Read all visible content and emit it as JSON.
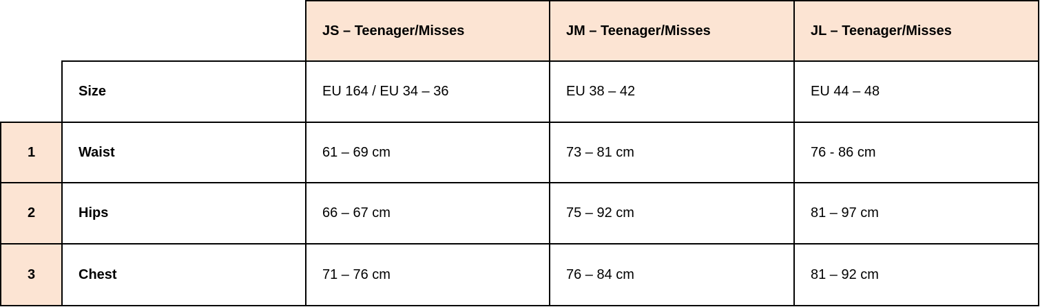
{
  "table": {
    "columns": [
      "JS – Teenager/Misses",
      "JM – Teenager/Misses",
      "JL – Teenager/Misses"
    ],
    "rows": [
      {
        "label": "Size",
        "cells": [
          "EU 164 / EU 34 – 36",
          "EU 38 – 42",
          "EU 44 – 48"
        ]
      },
      {
        "number": "1",
        "label": "Waist",
        "cells": [
          "61 – 69 cm",
          "73 – 81 cm",
          "76 - 86 cm"
        ]
      },
      {
        "number": "2",
        "label": "Hips",
        "cells": [
          "66 – 67 cm",
          "75 – 92 cm",
          "81 – 97 cm"
        ]
      },
      {
        "number": "3",
        "label": "Chest",
        "cells": [
          "71 – 76 cm",
          "76 – 84 cm",
          "81 – 92 cm"
        ]
      }
    ]
  }
}
